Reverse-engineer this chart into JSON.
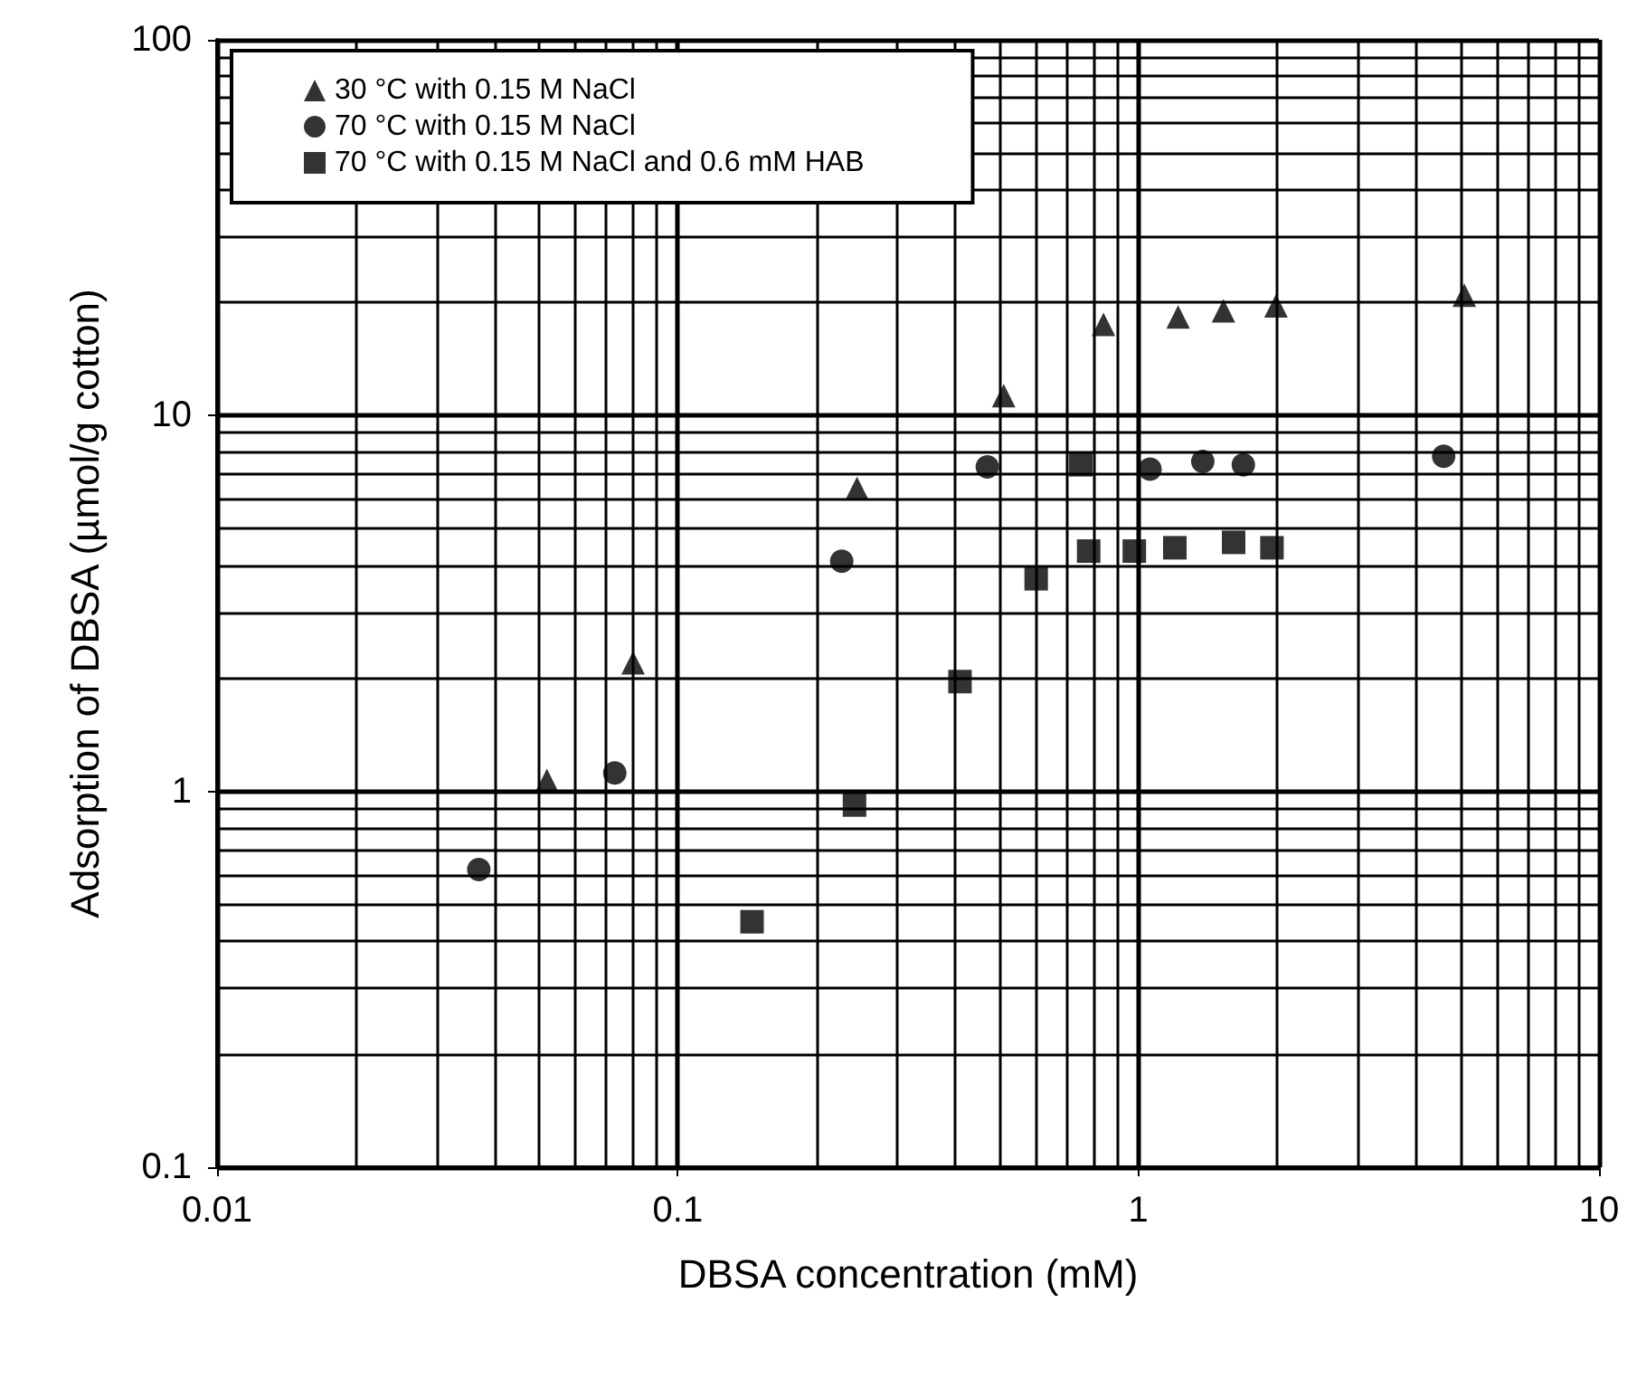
{
  "chart_data": {
    "type": "scatter",
    "xlabel": "DBSA concentration (mM)",
    "ylabel": "Adsorption of DBSA (µmol/g cotton)",
    "log": "xy",
    "grid": true,
    "legend": "top left",
    "xlim": [
      0.01,
      10
    ],
    "xticks": [
      0.01,
      0.1,
      1,
      10
    ],
    "ylim": [
      0.1,
      100
    ],
    "yticks": [
      0.1,
      1,
      10,
      100
    ],
    "series": [
      {
        "name": "30 °C with 0.15 M NaCl",
        "color": "#000000",
        "marker": "triangle",
        "x": [
          0.052,
          0.08,
          0.245,
          0.51,
          0.84,
          1.22,
          1.53,
          1.99,
          5.1
        ],
        "values": [
          1.07,
          2.2,
          6.4,
          11.3,
          17.5,
          18.3,
          19,
          19.6,
          20.9
        ]
      },
      {
        "name": "70 °C with 0.15 M NaCl",
        "color": "#000000",
        "marker": "circle",
        "x": [
          0.037,
          0.073,
          0.227,
          0.47,
          1.06,
          1.38,
          1.69,
          4.6
        ],
        "values": [
          0.62,
          1.12,
          4.1,
          7.3,
          7.2,
          7.55,
          7.4,
          7.8
        ]
      },
      {
        "name": "70 °C with 0.15 M NaCl and 0.6 mM HAB",
        "color": "#000000",
        "marker": "square",
        "x": [
          0.145,
          0.242,
          0.41,
          0.6,
          0.75,
          0.78,
          0.98,
          1.2,
          1.61,
          1.95
        ],
        "values": [
          0.45,
          0.92,
          1.96,
          3.68,
          7.4,
          4.36,
          4.36,
          4.45,
          4.6,
          4.45
        ]
      }
    ]
  }
}
